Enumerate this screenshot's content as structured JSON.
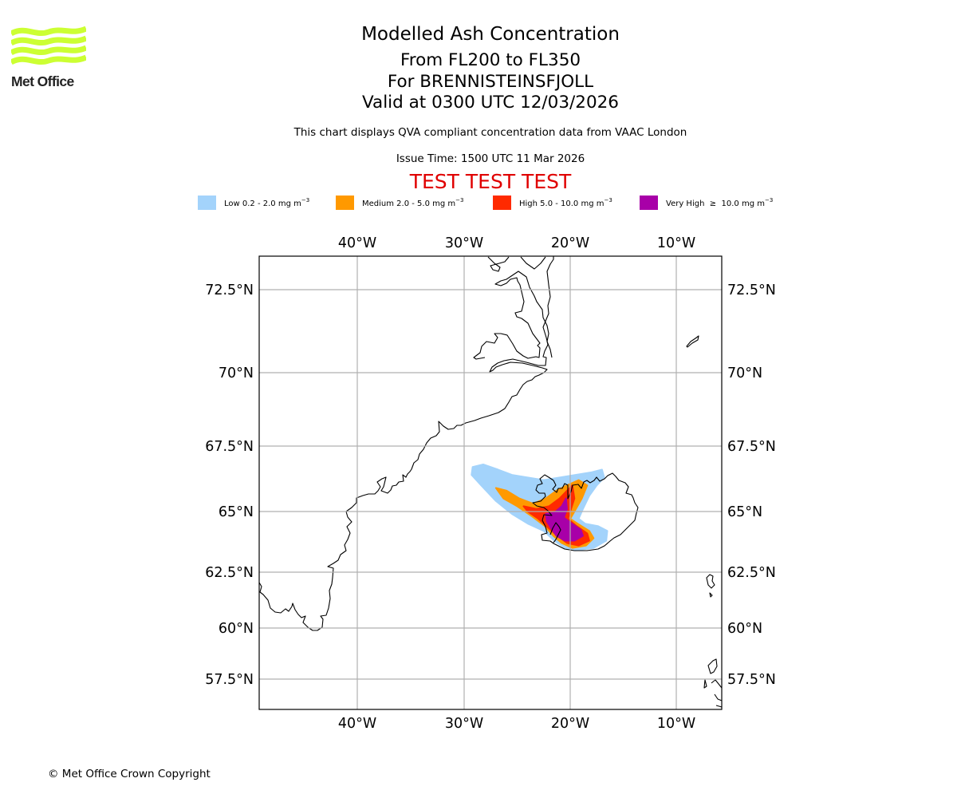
{
  "branding": {
    "logo_text": "Met Office",
    "logo_icon": "met-office-waves-icon",
    "logo_color": "#ccff33"
  },
  "header": {
    "title": "Modelled Ash Concentration",
    "levels": "From FL200 to FL350",
    "volcano": "For BRENNISTEINSFJOLL",
    "valid_time": "Valid at 0300 UTC 12/03/2026",
    "description": "This chart displays QVA compliant concentration data from VAAC London",
    "issue_time": "Issue Time: 1500 UTC 11 Mar 2026",
    "test_banner": "TEST TEST TEST",
    "test_banner_color": "#e00000"
  },
  "legend": [
    {
      "label": "Low 0.2 - 2.0 mg m",
      "unit_exp": "−3",
      "color": "#a3d3fb"
    },
    {
      "label": "Medium 2.0 - 5.0 mg m",
      "unit_exp": "−3",
      "color": "#ff9900"
    },
    {
      "label": "High 5.0 - 10.0 mg m",
      "unit_exp": "−3",
      "color": "#ff2a00"
    },
    {
      "label": "Very High  ≥  10.0 mg m",
      "unit_exp": "−3",
      "color": "#a800a8"
    }
  ],
  "chart_data": {
    "type": "map",
    "title": "Modelled Ash Concentration",
    "projection": "equirectangular-like",
    "lon_range": [
      -49.2,
      -5.8
    ],
    "lat_range": [
      56.1,
      73.7
    ],
    "lon_ticks": [
      -40,
      -30,
      -20,
      -10
    ],
    "lon_tick_labels": [
      "40°W",
      "30°W",
      "20°W",
      "10°W"
    ],
    "lat_ticks": [
      72.5,
      70,
      67.5,
      65,
      62.5,
      60,
      57.5
    ],
    "lat_tick_labels": [
      "72.5°N",
      "70°N",
      "67.5°N",
      "65°N",
      "62.5°N",
      "60°N",
      "57.5°N"
    ],
    "grid": true,
    "legend_position": "top",
    "ash_levels": [
      {
        "name": "Low",
        "range_mg_m3": [
          0.2,
          2.0
        ],
        "color": "#a3d3fb",
        "polygon": [
          [
            -29.2,
            66.7
          ],
          [
            -28.2,
            66.8
          ],
          [
            -26.8,
            66.6
          ],
          [
            -25.5,
            66.4
          ],
          [
            -24.0,
            66.3
          ],
          [
            -22.5,
            66.2
          ],
          [
            -21.0,
            66.3
          ],
          [
            -19.5,
            66.4
          ],
          [
            -18.0,
            66.5
          ],
          [
            -17.0,
            66.6
          ],
          [
            -16.8,
            66.3
          ],
          [
            -17.5,
            66.0
          ],
          [
            -18.2,
            65.6
          ],
          [
            -18.8,
            65.1
          ],
          [
            -19.2,
            64.7
          ],
          [
            -18.6,
            64.5
          ],
          [
            -17.4,
            64.4
          ],
          [
            -16.5,
            64.2
          ],
          [
            -16.6,
            63.8
          ],
          [
            -17.8,
            63.5
          ],
          [
            -19.5,
            63.4
          ],
          [
            -20.5,
            63.5
          ],
          [
            -21.5,
            63.8
          ],
          [
            -22.5,
            64.2
          ],
          [
            -24.0,
            64.5
          ],
          [
            -25.5,
            64.9
          ],
          [
            -27.0,
            65.4
          ],
          [
            -28.4,
            66.0
          ],
          [
            -29.3,
            66.4
          ]
        ]
      },
      {
        "name": "Medium",
        "range_mg_m3": [
          2.0,
          5.0
        ],
        "color": "#ff9900",
        "polygon": [
          [
            -27.0,
            65.9
          ],
          [
            -26.0,
            65.8
          ],
          [
            -24.8,
            65.5
          ],
          [
            -23.5,
            65.3
          ],
          [
            -22.3,
            65.5
          ],
          [
            -21.3,
            65.8
          ],
          [
            -20.3,
            66.0
          ],
          [
            -19.2,
            66.2
          ],
          [
            -18.4,
            66.0
          ],
          [
            -18.9,
            65.5
          ],
          [
            -19.6,
            65.0
          ],
          [
            -20.0,
            64.7
          ],
          [
            -19.3,
            64.5
          ],
          [
            -18.2,
            64.2
          ],
          [
            -17.8,
            63.9
          ],
          [
            -18.5,
            63.6
          ],
          [
            -19.8,
            63.5
          ],
          [
            -20.8,
            63.7
          ],
          [
            -21.6,
            64.0
          ],
          [
            -22.4,
            64.4
          ],
          [
            -23.6,
            64.8
          ],
          [
            -25.0,
            65.2
          ],
          [
            -26.3,
            65.5
          ]
        ]
      },
      {
        "name": "High",
        "range_mg_m3": [
          5.0,
          10.0
        ],
        "color": "#ff2a00",
        "polygon": [
          [
            -24.4,
            65.2
          ],
          [
            -23.2,
            65.1
          ],
          [
            -22.0,
            65.2
          ],
          [
            -21.0,
            65.5
          ],
          [
            -20.3,
            65.8
          ],
          [
            -19.8,
            66.0
          ],
          [
            -19.6,
            65.5
          ],
          [
            -20.0,
            65.0
          ],
          [
            -20.2,
            64.7
          ],
          [
            -19.4,
            64.4
          ],
          [
            -18.4,
            64.1
          ],
          [
            -18.2,
            63.8
          ],
          [
            -19.2,
            63.6
          ],
          [
            -20.3,
            63.7
          ],
          [
            -21.2,
            64.0
          ],
          [
            -22.0,
            64.3
          ],
          [
            -23.0,
            64.7
          ],
          [
            -24.0,
            65.0
          ]
        ]
      },
      {
        "name": "Very High",
        "range_mg_m3": [
          10.0,
          null
        ],
        "color": "#a800a8",
        "polygon": [
          [
            -22.3,
            64.9
          ],
          [
            -21.5,
            64.95
          ],
          [
            -20.8,
            65.2
          ],
          [
            -20.4,
            65.5
          ],
          [
            -20.3,
            65.1
          ],
          [
            -20.6,
            64.75
          ],
          [
            -20.0,
            64.55
          ],
          [
            -19.0,
            64.25
          ],
          [
            -18.8,
            64.0
          ],
          [
            -19.6,
            63.8
          ],
          [
            -20.5,
            63.8
          ],
          [
            -21.3,
            64.0
          ],
          [
            -21.8,
            64.3
          ],
          [
            -22.2,
            64.6
          ]
        ]
      }
    ]
  },
  "footer": {
    "copyright": "© Met Office Crown Copyright"
  }
}
